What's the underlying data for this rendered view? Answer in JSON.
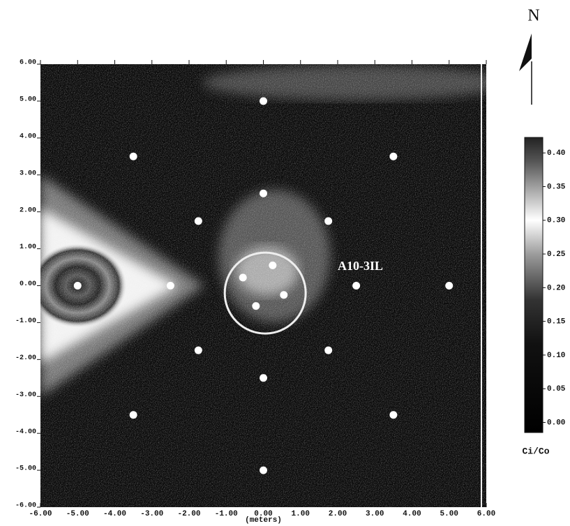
{
  "chart_data": {
    "type": "scatter",
    "x_label": "(meters)",
    "annotation": "A10-3IL",
    "north_label": "N",
    "xlim": [
      -6,
      6
    ],
    "ylim": [
      -6,
      6
    ],
    "xticks": [
      {
        "value": -6,
        "label": "-6.00"
      },
      {
        "value": -5,
        "label": "-5.00"
      },
      {
        "value": -4,
        "label": "-4.00"
      },
      {
        "value": -3,
        "label": "-3.00"
      },
      {
        "value": -2,
        "label": "-2.00"
      },
      {
        "value": -1,
        "label": "-1.00"
      },
      {
        "value": 0,
        "label": "0.00"
      },
      {
        "value": 1,
        "label": "1.00"
      },
      {
        "value": 2,
        "label": "2.00"
      },
      {
        "value": 3,
        "label": "3.00"
      },
      {
        "value": 4,
        "label": "4.00"
      },
      {
        "value": 5,
        "label": "5.00"
      },
      {
        "value": 6,
        "label": "6.00"
      }
    ],
    "yticks": [
      {
        "value": 6,
        "label": "6.00"
      },
      {
        "value": 5,
        "label": "5.00"
      },
      {
        "value": 4,
        "label": "4.00"
      },
      {
        "value": 3,
        "label": "3.00"
      },
      {
        "value": 2,
        "label": "2.00"
      },
      {
        "value": 1,
        "label": "1.00"
      },
      {
        "value": 0,
        "label": "0.00"
      },
      {
        "value": -1,
        "label": "-1.00"
      },
      {
        "value": -2,
        "label": "-2.00"
      },
      {
        "value": -3,
        "label": "-3.00"
      },
      {
        "value": -4,
        "label": "-4.00"
      },
      {
        "value": -5,
        "label": "-5.00"
      },
      {
        "value": -6,
        "label": "-6.00"
      }
    ],
    "series": [
      {
        "color": "#ffffff",
        "x": [
          -5,
          -2.5,
          0,
          0,
          0,
          0,
          -3.5,
          3.5,
          -3.5,
          3.5,
          -1.75,
          1.75,
          -1.75,
          1.75,
          2.5,
          5,
          0.25,
          -0.55,
          0.55,
          -0.2
        ],
        "y": [
          0,
          0,
          5,
          2.5,
          -2.5,
          -5,
          3.5,
          3.5,
          -3.5,
          -3.5,
          1.75,
          1.75,
          -1.75,
          -1.75,
          0,
          0,
          0.55,
          0.22,
          -0.25,
          -0.55
        ]
      }
    ],
    "colorbar": {
      "label": "Ci/Co",
      "lim": [
        -0.015,
        0.423
      ],
      "ticks": [
        {
          "value": 0.4,
          "label": "0.40"
        },
        {
          "value": 0.35,
          "label": "0.35"
        },
        {
          "value": 0.3,
          "label": "0.30"
        },
        {
          "value": 0.25,
          "label": "0.25"
        },
        {
          "value": 0.2,
          "label": "0.20"
        },
        {
          "value": 0.15,
          "label": "0.15"
        },
        {
          "value": 0.1,
          "label": "0.10"
        },
        {
          "value": 0.05,
          "label": "0.05"
        },
        {
          "value": 0,
          "label": "0.00"
        }
      ]
    }
  }
}
